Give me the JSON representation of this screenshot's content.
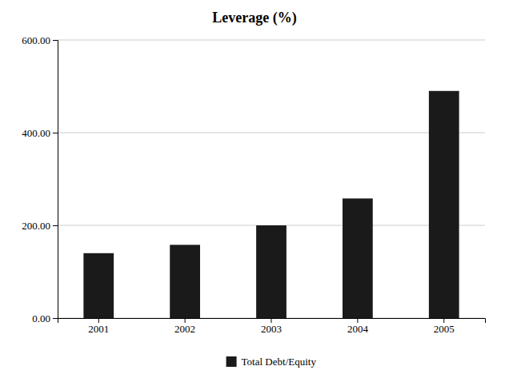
{
  "chart_data": {
    "type": "bar",
    "title": "Leverage (%)",
    "categories": [
      "2001",
      "2002",
      "2003",
      "2004",
      "2005"
    ],
    "series": [
      {
        "name": "Total Debt/Equity",
        "color": "#1a1a1a",
        "values": [
          140,
          158,
          200,
          258,
          490
        ]
      }
    ],
    "ylim": [
      0,
      600
    ],
    "yticks": [
      {
        "value": 0,
        "label": "0.00"
      },
      {
        "value": 200,
        "label": "200.00"
      },
      {
        "value": 400,
        "label": "400.00"
      },
      {
        "value": 600,
        "label": "600.00"
      }
    ],
    "grid": true,
    "legend": "bottom"
  }
}
